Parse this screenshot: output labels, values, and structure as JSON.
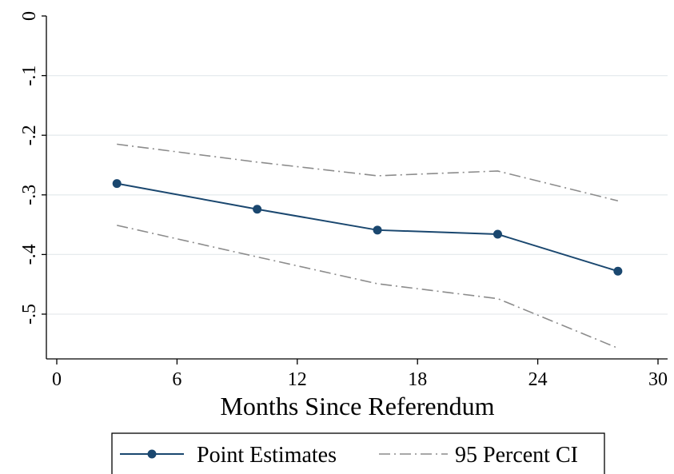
{
  "chart_data": {
    "type": "line",
    "title": "",
    "xlabel": "Months Since Referendum",
    "ylabel": "",
    "xlim": [
      0,
      30
    ],
    "ylim": [
      -0.57,
      0.01
    ],
    "x_ticks": [
      0,
      6,
      12,
      18,
      24,
      30
    ],
    "x_tick_labels": [
      "0",
      "6",
      "12",
      "18",
      "24",
      "30"
    ],
    "y_ticks": [
      0,
      -0.1,
      -0.2,
      -0.3,
      -0.4,
      -0.5
    ],
    "y_tick_labels": [
      "0",
      "-.1",
      "-.2",
      "-.3",
      "-.4",
      "-.5"
    ],
    "grid": true,
    "legend_position": "bottom",
    "series": [
      {
        "name": "Point Estimates",
        "x": [
          3,
          10,
          16,
          22,
          28
        ],
        "y": [
          -0.281,
          -0.324,
          -0.359,
          -0.366,
          -0.428
        ],
        "color": "#1a476f",
        "style": "solid-markers"
      },
      {
        "name": "95 Percent CI",
        "x": [
          3,
          10,
          16,
          22,
          28
        ],
        "y": [
          -0.215,
          -0.245,
          -0.268,
          -0.26,
          -0.31
        ],
        "color": "#8c8c8c",
        "style": "dash-dot"
      },
      {
        "name": "",
        "x": [
          3,
          10,
          16,
          22,
          28
        ],
        "y": [
          -0.351,
          -0.404,
          -0.449,
          -0.474,
          -0.557
        ],
        "color": "#8c8c8c",
        "style": "dash-dot"
      }
    ]
  },
  "legend": {
    "items": [
      {
        "label": "Point Estimates",
        "style": "solid-markers",
        "color": "#1a476f"
      },
      {
        "label": "95 Percent CI",
        "style": "dash-dot",
        "color": "#8c8c8c"
      }
    ]
  }
}
